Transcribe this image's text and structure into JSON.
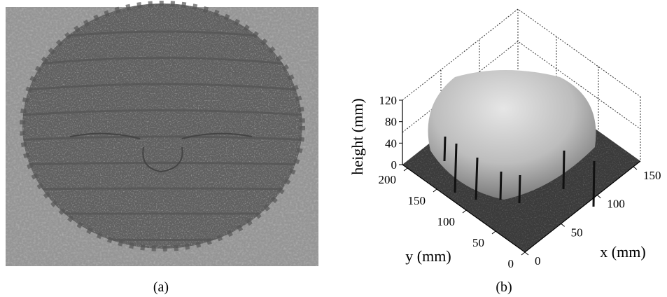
{
  "panel_a": {
    "label": "(a)"
  },
  "panel_b": {
    "label": "(b)",
    "z_axis": {
      "title": "height (mm)",
      "ticks": [
        0,
        40,
        80,
        120
      ]
    },
    "y_axis": {
      "title": "y (mm)",
      "ticks": [
        0,
        50,
        100,
        150,
        200
      ]
    },
    "x_axis": {
      "title": "x (mm)",
      "ticks": [
        0,
        50,
        100,
        150
      ]
    }
  }
}
